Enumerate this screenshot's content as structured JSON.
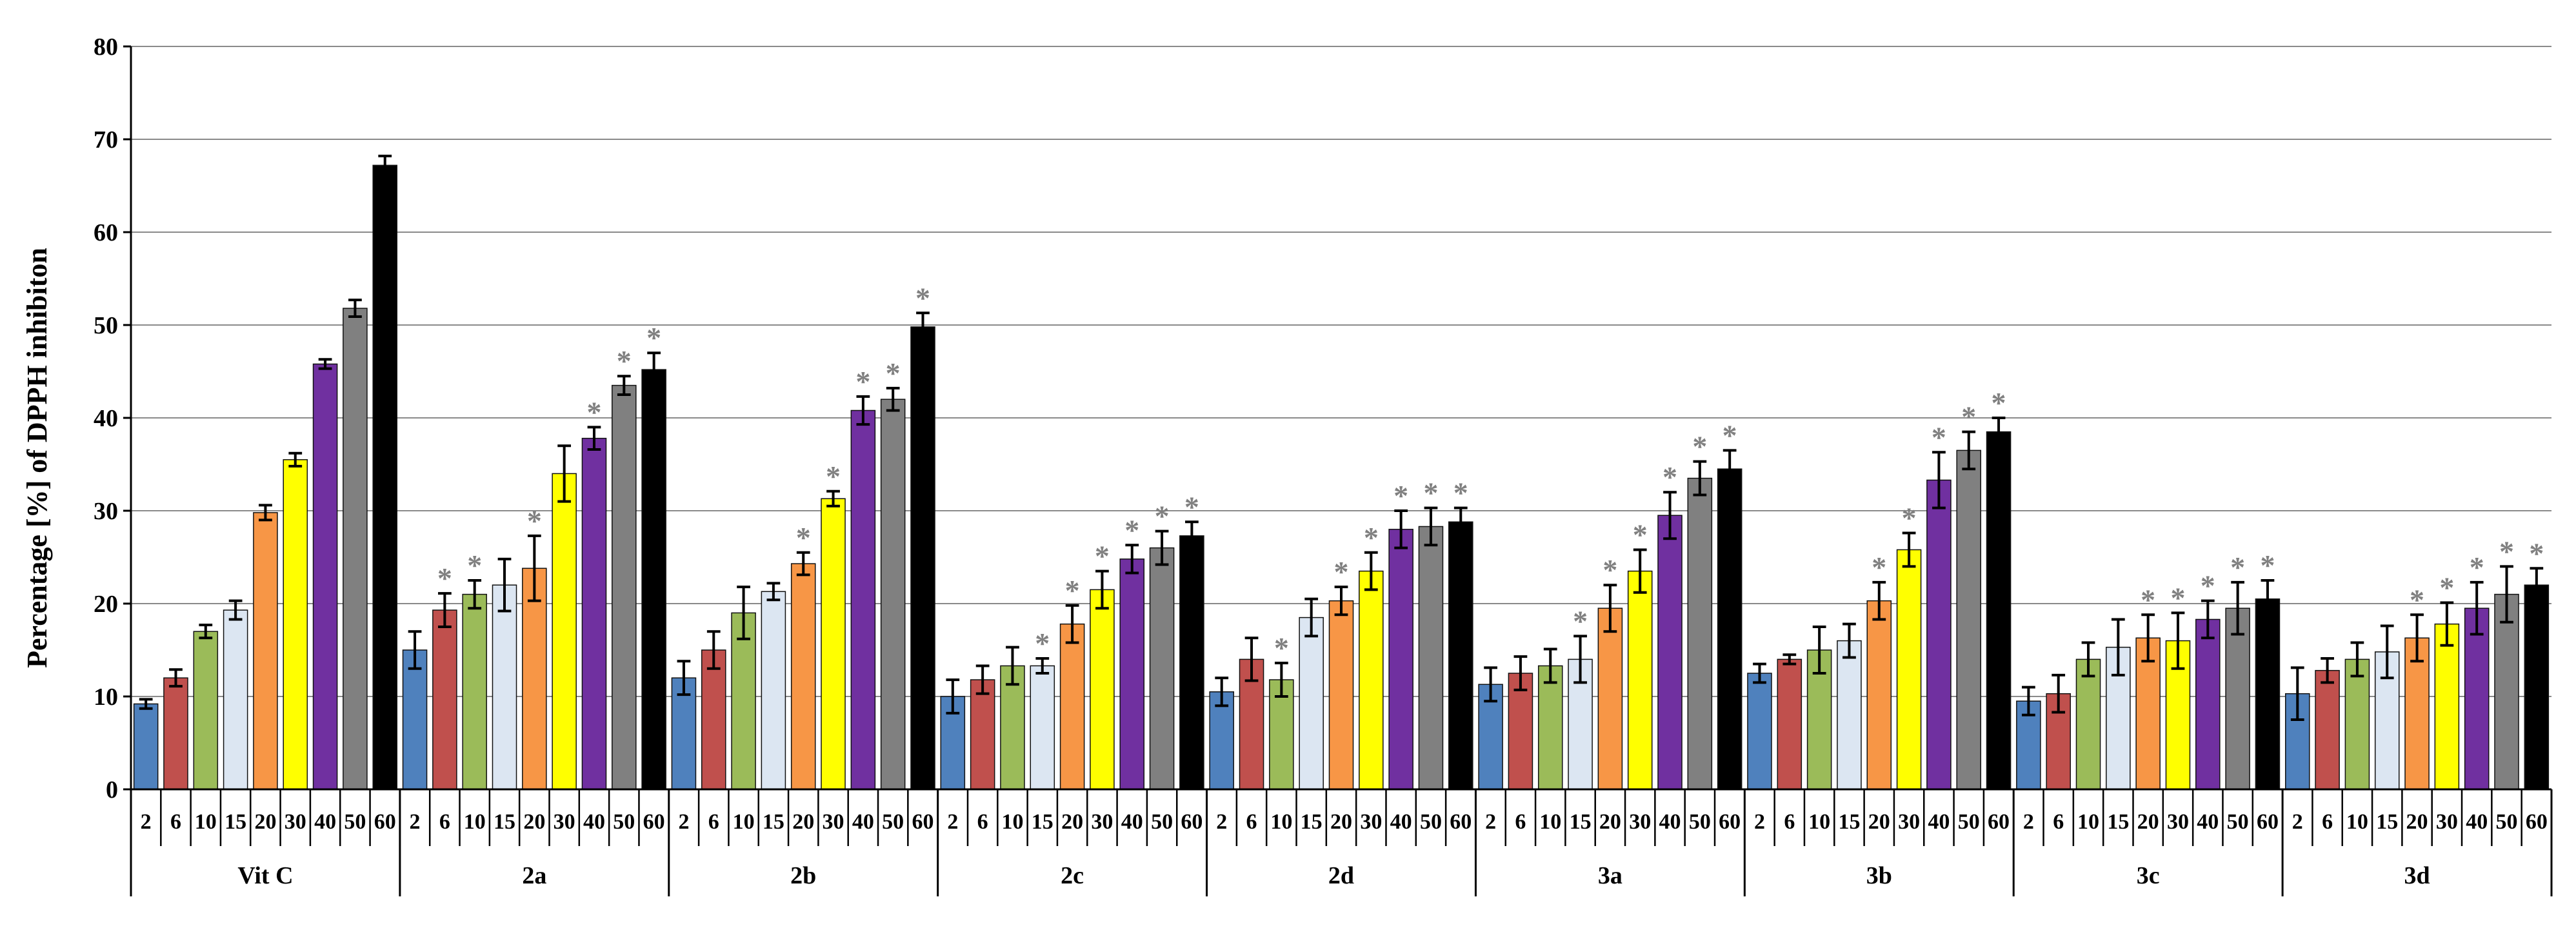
{
  "chart_data": {
    "type": "bar",
    "title": "",
    "xlabel": "",
    "ylabel": "Percentage [%] of DPPH inhibiton",
    "ylim": [
      0,
      80
    ],
    "yticks": [
      0,
      10,
      20,
      30,
      40,
      50,
      60,
      70,
      80
    ],
    "grid": true,
    "legend": "none",
    "sublabels": [
      "2",
      "6",
      "10",
      "15",
      "20",
      "30",
      "40",
      "50",
      "60"
    ],
    "bar_colors": [
      "#4F81BD",
      "#C0504D",
      "#9BBB59",
      "#DCE6F2",
      "#F79646",
      "#FFFF00",
      "#7030A0",
      "#808080",
      "#000000"
    ],
    "significance_marker": "*",
    "groups": [
      {
        "name": "Vit C",
        "values": [
          9.2,
          12.0,
          17.0,
          19.3,
          29.8,
          35.5,
          45.8,
          51.8,
          67.2
        ],
        "errors": [
          0.5,
          0.9,
          0.7,
          1.0,
          0.8,
          0.7,
          0.5,
          0.9,
          1.0
        ],
        "significant": [
          false,
          false,
          false,
          false,
          false,
          false,
          false,
          false,
          false
        ]
      },
      {
        "name": "2a",
        "values": [
          15.0,
          19.3,
          21.0,
          22.0,
          23.8,
          34.0,
          37.8,
          43.5,
          45.2
        ],
        "errors": [
          2.0,
          1.8,
          1.5,
          2.8,
          3.5,
          3.0,
          1.2,
          1.0,
          1.8
        ],
        "significant": [
          false,
          true,
          true,
          false,
          true,
          false,
          true,
          true,
          true
        ]
      },
      {
        "name": "2b",
        "values": [
          12.0,
          15.0,
          19.0,
          21.3,
          24.3,
          31.3,
          40.8,
          42.0,
          49.8
        ],
        "errors": [
          1.8,
          2.0,
          2.8,
          0.9,
          1.2,
          0.8,
          1.5,
          1.2,
          1.5
        ],
        "significant": [
          false,
          false,
          false,
          false,
          true,
          true,
          true,
          true,
          true
        ]
      },
      {
        "name": "2c",
        "values": [
          10.0,
          11.8,
          13.3,
          13.3,
          17.8,
          21.5,
          24.8,
          26.0,
          27.3
        ],
        "errors": [
          1.8,
          1.5,
          2.0,
          0.8,
          2.0,
          2.0,
          1.5,
          1.8,
          1.5
        ],
        "significant": [
          false,
          false,
          false,
          true,
          true,
          true,
          true,
          true,
          true
        ]
      },
      {
        "name": "2d",
        "values": [
          10.5,
          14.0,
          11.8,
          18.5,
          20.3,
          23.5,
          28.0,
          28.3,
          28.8
        ],
        "errors": [
          1.5,
          2.3,
          1.8,
          2.0,
          1.5,
          2.0,
          2.0,
          2.0,
          1.5
        ],
        "significant": [
          false,
          false,
          true,
          false,
          true,
          true,
          true,
          true,
          true
        ]
      },
      {
        "name": "3a",
        "values": [
          11.3,
          12.5,
          13.3,
          14.0,
          19.5,
          23.5,
          29.5,
          33.5,
          34.5
        ],
        "errors": [
          1.8,
          1.8,
          1.8,
          2.5,
          2.5,
          2.3,
          2.5,
          1.8,
          2.0
        ],
        "significant": [
          false,
          false,
          false,
          true,
          true,
          true,
          true,
          true,
          true
        ]
      },
      {
        "name": "3b",
        "values": [
          12.5,
          14.0,
          15.0,
          16.0,
          20.3,
          25.8,
          33.3,
          36.5,
          38.5
        ],
        "errors": [
          1.0,
          0.5,
          2.5,
          1.8,
          2.0,
          1.8,
          3.0,
          2.0,
          1.5
        ],
        "significant": [
          false,
          false,
          false,
          false,
          true,
          true,
          true,
          true,
          true
        ]
      },
      {
        "name": "3c",
        "values": [
          9.5,
          10.3,
          14.0,
          15.3,
          16.3,
          16.0,
          18.3,
          19.5,
          20.5
        ],
        "errors": [
          1.5,
          2.0,
          1.8,
          3.0,
          2.5,
          3.0,
          2.0,
          2.8,
          2.0
        ],
        "significant": [
          false,
          false,
          false,
          false,
          true,
          true,
          true,
          true,
          true
        ]
      },
      {
        "name": "3d",
        "values": [
          10.3,
          12.8,
          14.0,
          14.8,
          16.3,
          17.8,
          19.5,
          21.0,
          22.0
        ],
        "errors": [
          2.8,
          1.3,
          1.8,
          2.8,
          2.5,
          2.3,
          2.8,
          3.0,
          1.8
        ],
        "significant": [
          false,
          false,
          false,
          false,
          true,
          true,
          true,
          true,
          true
        ]
      }
    ]
  }
}
